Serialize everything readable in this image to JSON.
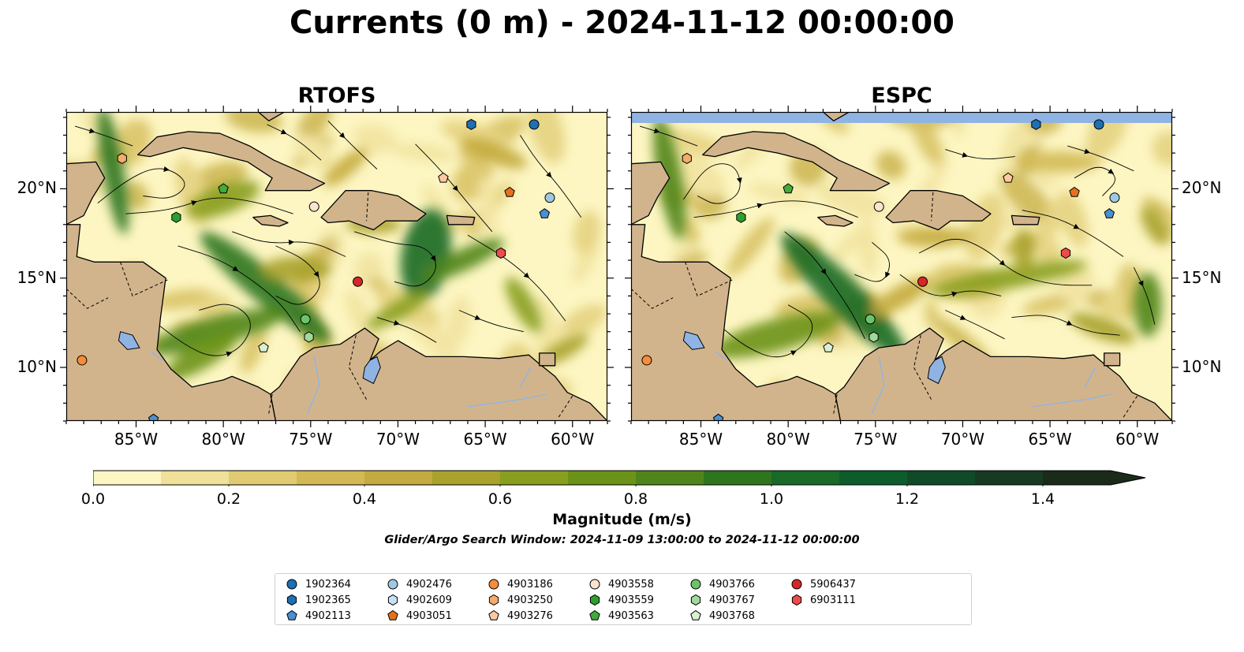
{
  "figure": {
    "title": "Currents (0 m) - 2024-11-12 00:00:00",
    "search_window": "Glider/Argo Search Window: 2024-11-09 13:00:00 to 2024-11-12 00:00:00"
  },
  "panels": [
    {
      "title": "RTOFS"
    },
    {
      "title": "ESPC"
    }
  ],
  "map_extent": {
    "lon_min": -89.0,
    "lon_max": -58.0,
    "lat_min": 7.0,
    "lat_max": 24.3
  },
  "axes": {
    "lon_ticks": [
      "85°W",
      "80°W",
      "75°W",
      "70°W",
      "65°W",
      "60°W"
    ],
    "lon_values": [
      -85,
      -80,
      -75,
      -70,
      -65,
      -60
    ],
    "lat_ticks": [
      "20°N",
      "15°N",
      "10°N"
    ],
    "lat_values": [
      20,
      15,
      10
    ]
  },
  "colorbar": {
    "label": "Magnitude (m/s)",
    "ticks": [
      "0.0",
      "0.2",
      "0.4",
      "0.6",
      "0.8",
      "1.0",
      "1.2",
      "1.4"
    ],
    "tick_values": [
      0.0,
      0.2,
      0.4,
      0.6,
      0.8,
      1.0,
      1.2,
      1.4
    ],
    "range": [
      0.0,
      1.5
    ],
    "extend": "max",
    "colors": [
      "#fdf6c2",
      "#efe09a",
      "#e0cb73",
      "#d2b955",
      "#c4ab3f",
      "#a9a22c",
      "#889e1e",
      "#6b9219",
      "#4f851a",
      "#2f751e",
      "#186a26",
      "#0d5d2c",
      "#114a28",
      "#183a22",
      "#1a2b1a"
    ]
  },
  "colors": {
    "land": "#d2b48c",
    "lake": "#8fb4e3",
    "ocean_low": "#fdf6c2",
    "ocean_mid": "#c9b14a",
    "ocean_high": "#1f6f2a",
    "missing_band": "#8fb4e3"
  },
  "legend": [
    {
      "id": "1902364",
      "shape": "circle",
      "color": "#1f6fb4"
    },
    {
      "id": "1902365",
      "shape": "hexagon",
      "color": "#1f6fb4"
    },
    {
      "id": "4902113",
      "shape": "pentagon",
      "color": "#4a8fd1"
    },
    {
      "id": "4902476",
      "shape": "circle",
      "color": "#9ecae1"
    },
    {
      "id": "4902609",
      "shape": "hexagon",
      "color": "#c6e2f2"
    },
    {
      "id": "4903051",
      "shape": "pentagon",
      "color": "#e6701a"
    },
    {
      "id": "4903186",
      "shape": "circle",
      "color": "#f58d3a"
    },
    {
      "id": "4903250",
      "shape": "hexagon",
      "color": "#f6ab6b"
    },
    {
      "id": "4903276",
      "shape": "pentagon",
      "color": "#fcc9a0"
    },
    {
      "id": "4903558",
      "shape": "circle",
      "color": "#fbe3cc"
    },
    {
      "id": "4903559",
      "shape": "hexagon",
      "color": "#2ca02c"
    },
    {
      "id": "4903563",
      "shape": "pentagon",
      "color": "#41ab3a"
    },
    {
      "id": "4903766",
      "shape": "circle",
      "color": "#6cc46a"
    },
    {
      "id": "4903767",
      "shape": "hexagon",
      "color": "#a1d99b"
    },
    {
      "id": "4903768",
      "shape": "pentagon",
      "color": "#d9f0d3"
    },
    {
      "id": "5906437",
      "shape": "circle",
      "color": "#d62728"
    },
    {
      "id": "6903111",
      "shape": "hexagon",
      "color": "#ef4b4b"
    }
  ],
  "observations": [
    {
      "id": "1902364",
      "lon": -62.2,
      "lat": 23.6
    },
    {
      "id": "1902365",
      "lon": -65.8,
      "lat": 23.6
    },
    {
      "id": "4902113",
      "lon": -84.0,
      "lat": 7.1
    },
    {
      "id": "4902113",
      "lon": -61.6,
      "lat": 18.6
    },
    {
      "id": "4902476",
      "lon": -61.3,
      "lat": 19.5
    },
    {
      "id": "4903051",
      "lon": -63.6,
      "lat": 19.8
    },
    {
      "id": "4903186",
      "lon": -88.1,
      "lat": 10.4
    },
    {
      "id": "4903250",
      "lon": -85.8,
      "lat": 21.7
    },
    {
      "id": "4903276",
      "lon": -67.4,
      "lat": 20.6
    },
    {
      "id": "4903558",
      "lon": -74.8,
      "lat": 19.0
    },
    {
      "id": "4903559",
      "lon": -82.7,
      "lat": 18.4
    },
    {
      "id": "4903563",
      "lon": -80.0,
      "lat": 20.0
    },
    {
      "id": "4903766",
      "lon": -75.3,
      "lat": 12.7
    },
    {
      "id": "4903767",
      "lon": -75.1,
      "lat": 11.7
    },
    {
      "id": "4903768",
      "lon": -77.7,
      "lat": 11.1
    },
    {
      "id": "5906437",
      "lon": -72.3,
      "lat": 14.8
    },
    {
      "id": "6903111",
      "lon": -64.1,
      "lat": 16.4
    }
  ]
}
